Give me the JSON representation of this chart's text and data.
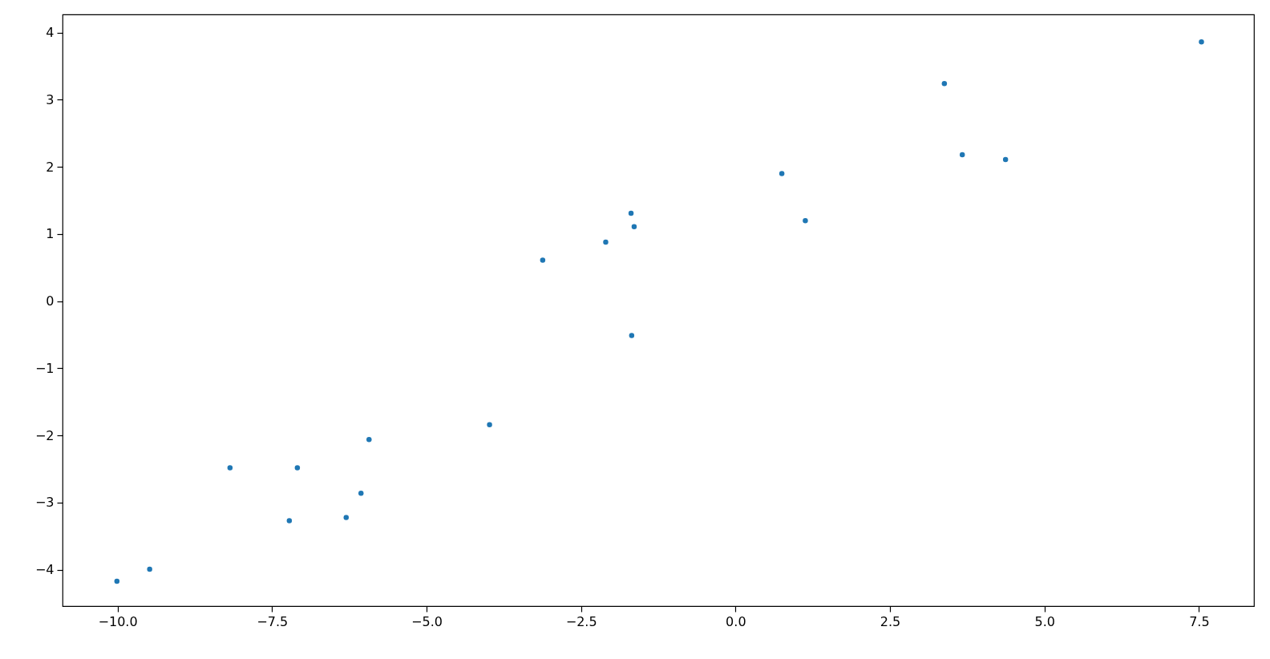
{
  "chart_data": {
    "type": "scatter",
    "marker": "circle",
    "grid": false,
    "x": [
      -10.01,
      -9.48,
      -8.18,
      -7.22,
      -7.09,
      -6.3,
      -6.06,
      -5.93,
      -3.98,
      -3.12,
      -2.1,
      -1.69,
      -1.64,
      -1.68,
      0.75,
      1.13,
      3.38,
      3.67,
      4.37,
      7.54
    ],
    "series": [
      {
        "color": "#1f77b4",
        "values": [
          -4.17,
          -3.99,
          -2.48,
          -3.27,
          -2.48,
          -3.22,
          -2.86,
          -2.06,
          -1.84,
          0.61,
          0.88,
          1.31,
          1.11,
          -0.51,
          1.9,
          1.2,
          3.24,
          2.18,
          2.11,
          3.86
        ]
      }
    ],
    "xlim": [
      -10.89,
      8.39
    ],
    "ylim": [
      -4.54,
      4.27
    ],
    "xticks": [
      {
        "value": -10,
        "label": "−10.0"
      },
      {
        "value": -7.5,
        "label": "−7.5"
      },
      {
        "value": -5,
        "label": "−5.0"
      },
      {
        "value": -2.5,
        "label": "−2.5"
      },
      {
        "value": 0,
        "label": "0.0"
      },
      {
        "value": 2.5,
        "label": "2.5"
      },
      {
        "value": 5,
        "label": "5.0"
      },
      {
        "value": 7.5,
        "label": "7.5"
      }
    ],
    "yticks": [
      {
        "value": -4,
        "label": "−4"
      },
      {
        "value": -3,
        "label": "−3"
      },
      {
        "value": -2,
        "label": "−2"
      },
      {
        "value": -1,
        "label": "−1"
      },
      0,
      1,
      2,
      3,
      4
    ]
  }
}
